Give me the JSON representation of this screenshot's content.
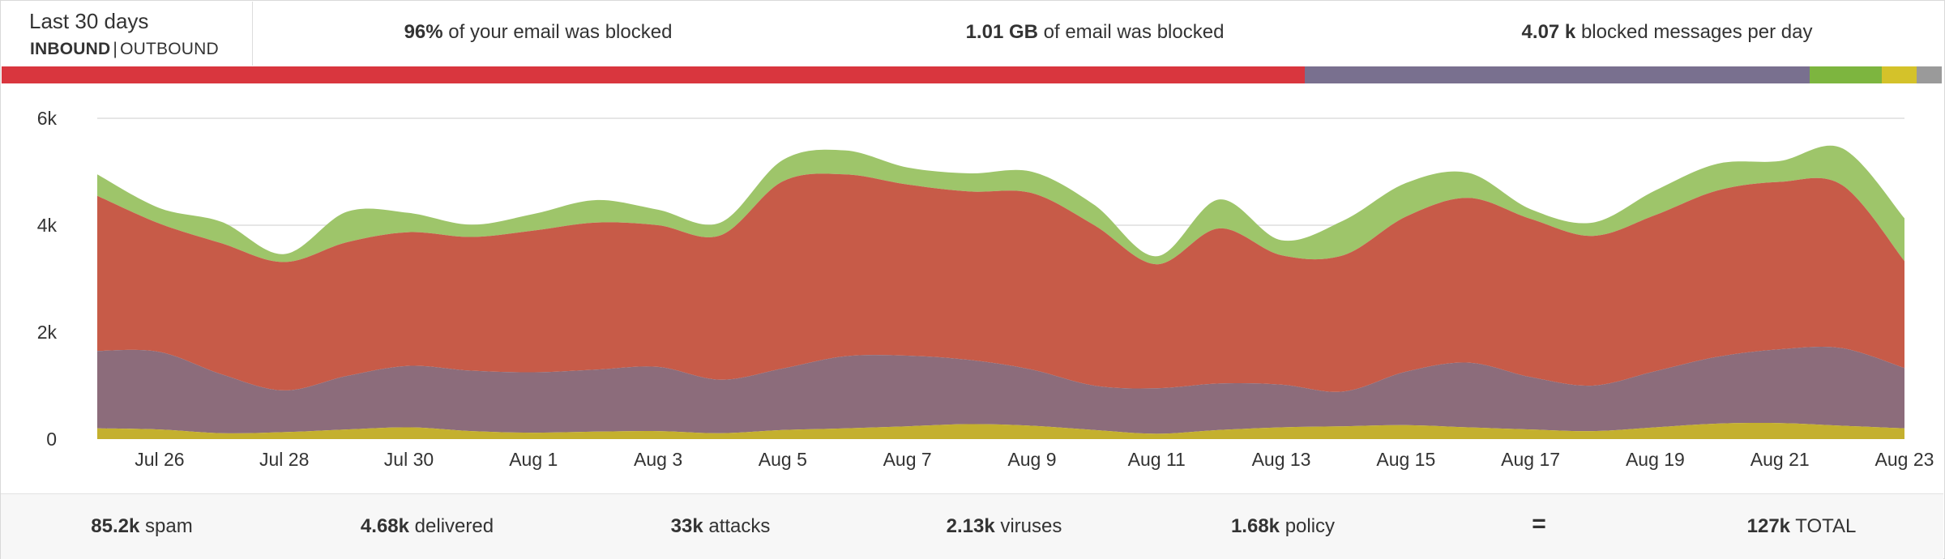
{
  "header": {
    "period": "Last 30 days",
    "inbound_label": "INBOUND",
    "separator": "|",
    "outbound_label": "OUTBOUND",
    "stats": [
      {
        "value": "96%",
        "text": "of your email was blocked"
      },
      {
        "value": "1.01 GB",
        "text": "of email was blocked"
      },
      {
        "value": "4.07 k",
        "text": "blocked messages per day"
      }
    ]
  },
  "distribution_bar": [
    {
      "share": 0.6715,
      "color": "#d9363e"
    },
    {
      "share": 0.2605,
      "color": "#79708f"
    },
    {
      "share": 0.037,
      "color": "#7db53f"
    },
    {
      "share": 0.018,
      "color": "#d4c22a"
    },
    {
      "share": 0.013,
      "color": "#9a9a9a"
    }
  ],
  "chart_data": {
    "type": "area",
    "stacked": true,
    "ylim": [
      0,
      6000
    ],
    "y_ticks": [
      0,
      2000,
      4000,
      6000
    ],
    "y_tick_labels": [
      "0",
      "2k",
      "4k",
      "6k"
    ],
    "x_ticks": [
      "Jul 26",
      "Jul 28",
      "Jul 30",
      "Aug 1",
      "Aug 3",
      "Aug 5",
      "Aug 7",
      "Aug 9",
      "Aug 11",
      "Aug 13",
      "Aug 15",
      "Aug 17",
      "Aug 19",
      "Aug 21",
      "Aug 23"
    ],
    "x": [
      "Jul 25",
      "Jul 26",
      "Jul 27",
      "Jul 28",
      "Jul 29",
      "Jul 30",
      "Jul 31",
      "Aug 1",
      "Aug 2",
      "Aug 3",
      "Aug 4",
      "Aug 5",
      "Aug 6",
      "Aug 7",
      "Aug 8",
      "Aug 9",
      "Aug 10",
      "Aug 11",
      "Aug 12",
      "Aug 13",
      "Aug 14",
      "Aug 15",
      "Aug 16",
      "Aug 17",
      "Aug 18",
      "Aug 19",
      "Aug 20",
      "Aug 21",
      "Aug 22",
      "Aug 23"
    ],
    "grid": true,
    "series": [
      {
        "color": "#c4b02e",
        "values": [
          200,
          180,
          110,
          130,
          180,
          220,
          150,
          120,
          140,
          150,
          110,
          170,
          200,
          240,
          280,
          250,
          170,
          100,
          170,
          220,
          240,
          260,
          220,
          180,
          150,
          220,
          290,
          300,
          250,
          200
        ]
      },
      {
        "color": "#8c6c7b",
        "values": [
          1450,
          1450,
          1100,
          780,
          1000,
          1150,
          1130,
          1130,
          1160,
          1200,
          1000,
          1150,
          1350,
          1320,
          1200,
          1050,
          830,
          850,
          870,
          800,
          650,
          1000,
          1210,
          980,
          850,
          1050,
          1250,
          1380,
          1450,
          1130
        ]
      },
      {
        "color": "#c75b48",
        "values": [
          2900,
          2400,
          2450,
          2400,
          2500,
          2500,
          2500,
          2650,
          2750,
          2650,
          2700,
          3500,
          3400,
          3200,
          3150,
          3300,
          3000,
          2320,
          2900,
          2420,
          2550,
          2900,
          3080,
          2960,
          2800,
          2920,
          3110,
          3130,
          3050,
          2000
        ]
      },
      {
        "color": "#9ec56a",
        "values": [
          400,
          290,
          400,
          150,
          570,
          360,
          230,
          310,
          420,
          290,
          240,
          400,
          450,
          320,
          340,
          400,
          380,
          150,
          540,
          280,
          650,
          630,
          470,
          180,
          250,
          460,
          500,
          390,
          690,
          800
        ]
      }
    ]
  },
  "footer": {
    "items": [
      {
        "value": "85.2k",
        "text": "spam"
      },
      {
        "value": "4.68k",
        "text": "delivered"
      },
      {
        "value": "33k",
        "text": "attacks"
      },
      {
        "value": "2.13k",
        "text": "viruses"
      },
      {
        "value": "1.68k",
        "text": "policy"
      }
    ],
    "equals": "=",
    "total_value": "127k",
    "total_text": "TOTAL"
  }
}
